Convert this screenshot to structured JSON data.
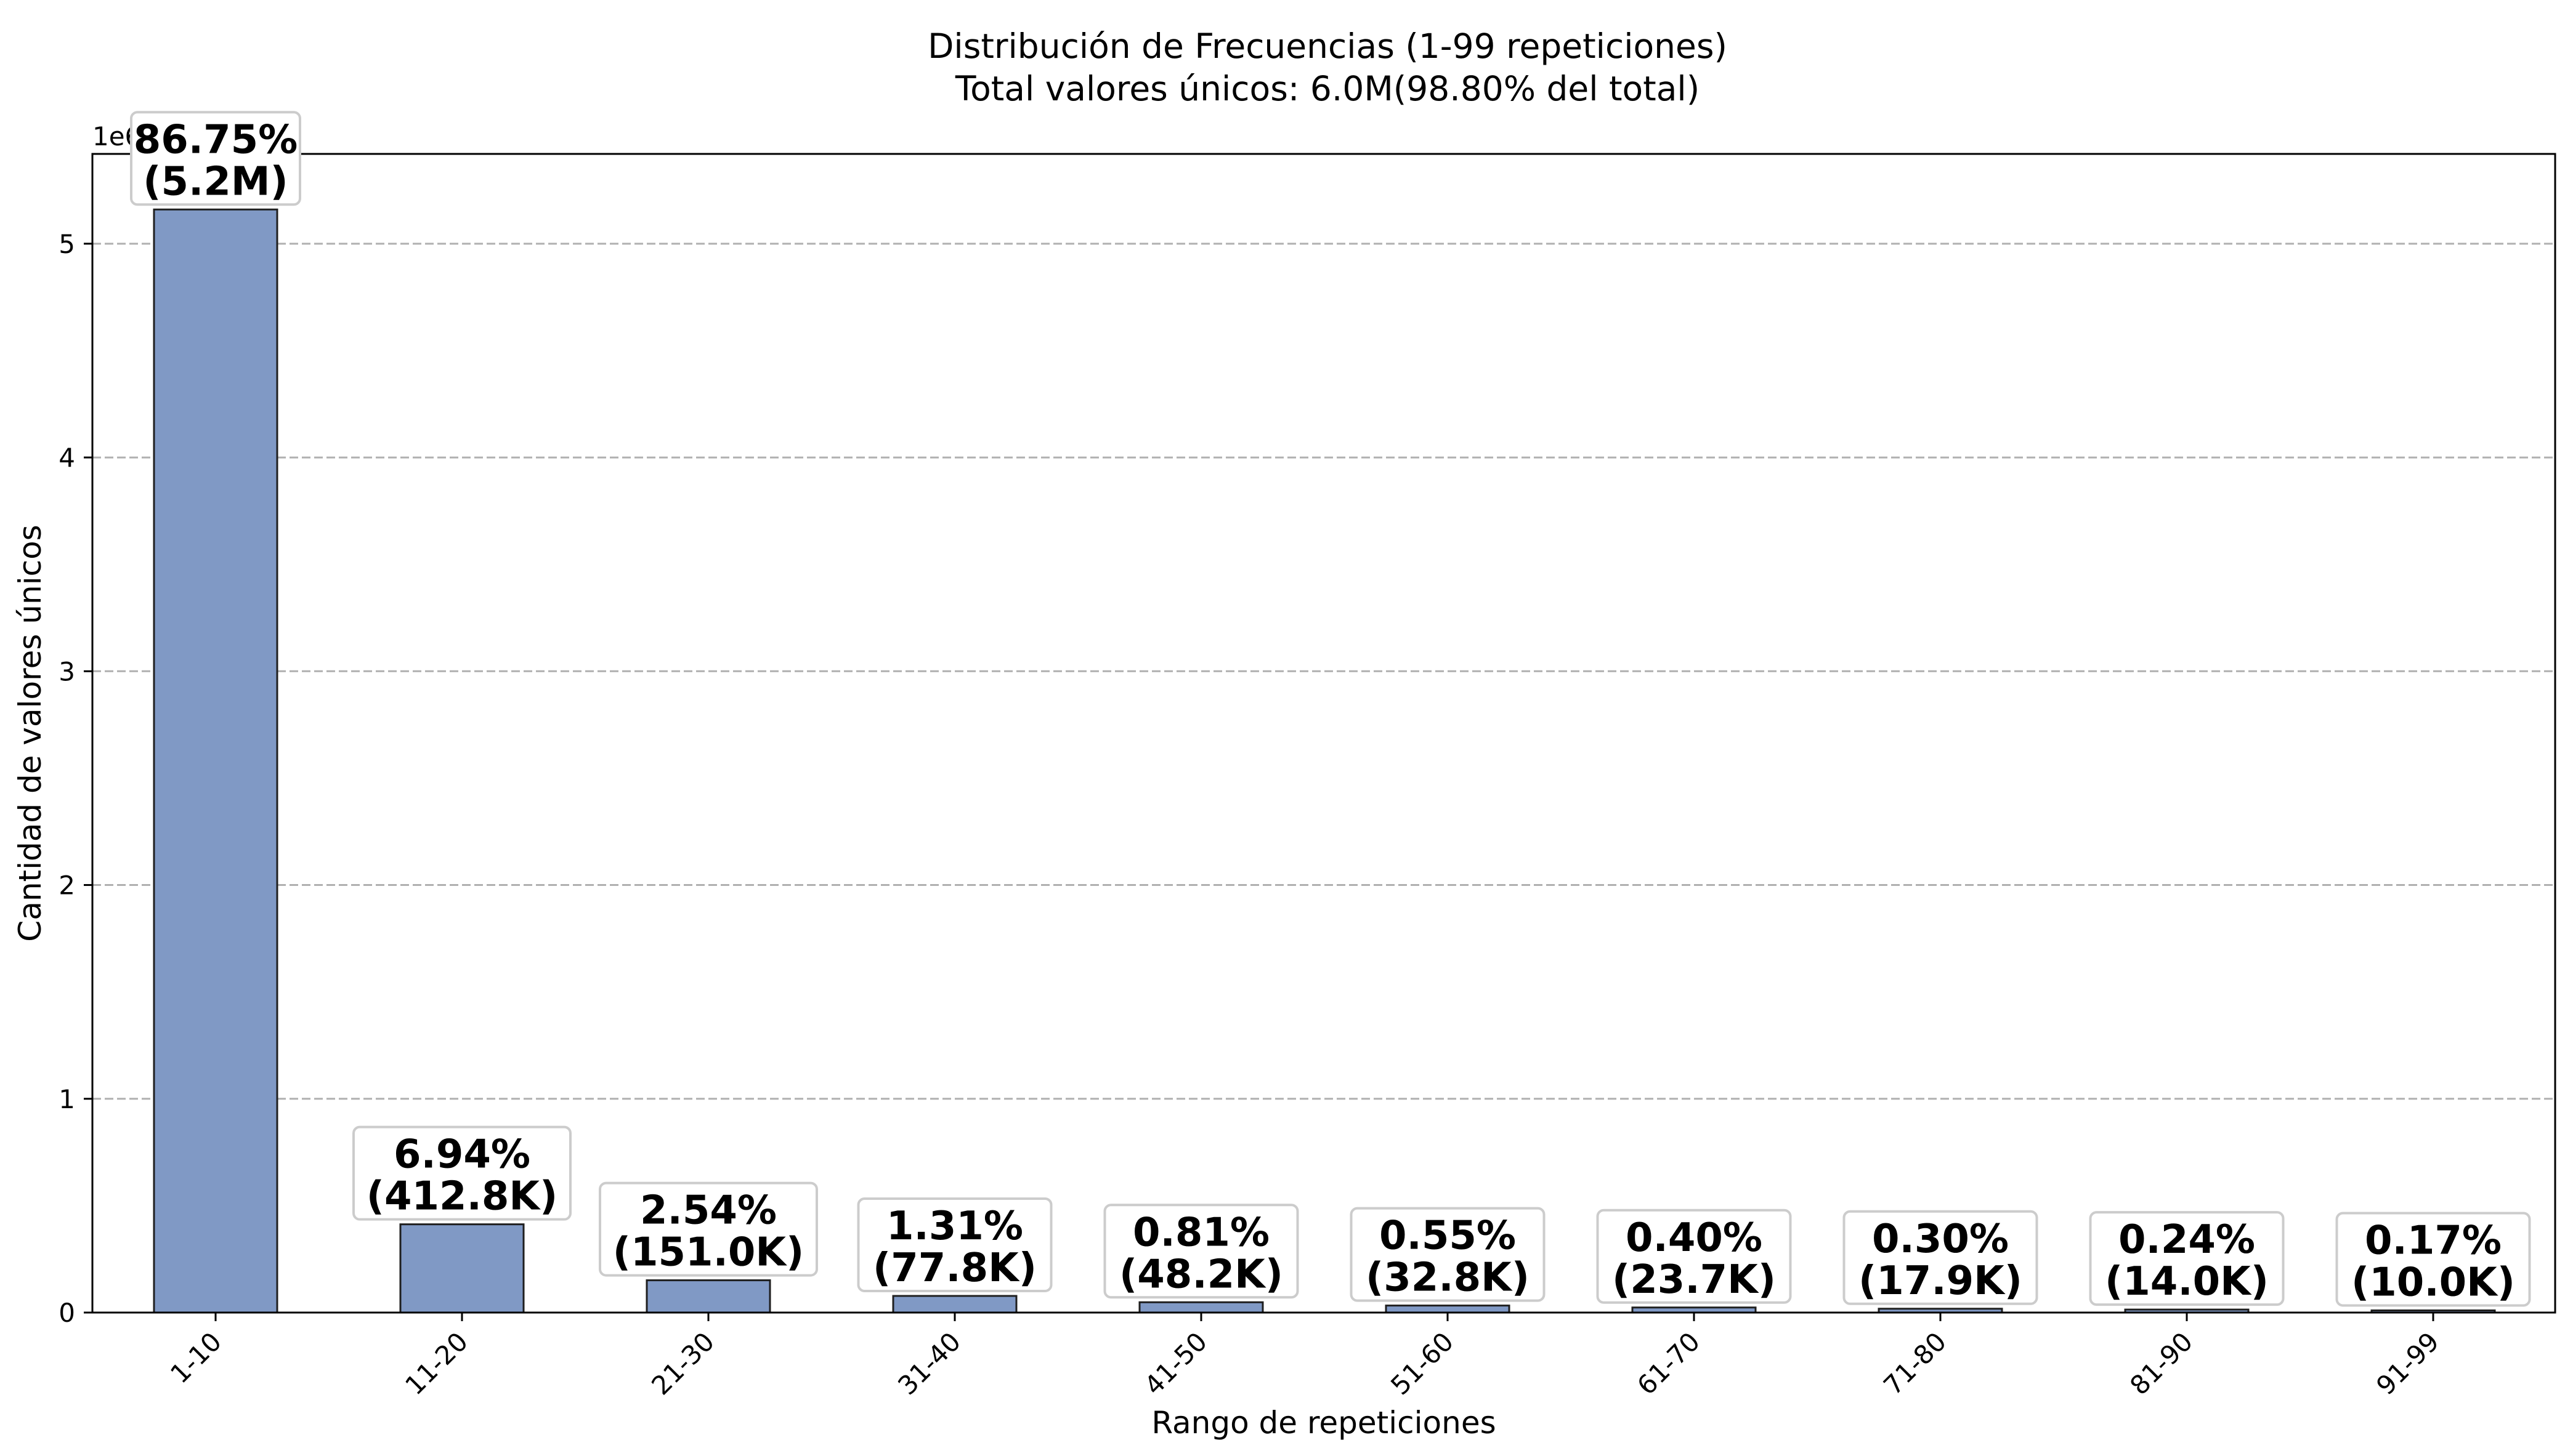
{
  "chart_data": {
    "type": "bar",
    "title": "Distribución de Frecuencias (1-99 repeticiones)",
    "subtitle": "Total valores únicos: 6.0M(98.80% del total)",
    "xlabel": "Rango de repeticiones",
    "ylabel": "Cantidad de valores únicos",
    "y_offset_label": "1e6",
    "categories": [
      "1-10",
      "11-20",
      "21-30",
      "31-40",
      "41-50",
      "51-60",
      "61-70",
      "71-80",
      "81-90",
      "91-99"
    ],
    "values": [
      5160000,
      412800,
      151000,
      77800,
      48200,
      32800,
      23700,
      17900,
      14000,
      10000
    ],
    "data_labels": [
      [
        "86.75%",
        "(5.2M)"
      ],
      [
        "6.94%",
        "(412.8K)"
      ],
      [
        "2.54%",
        "(151.0K)"
      ],
      [
        "1.31%",
        "(77.8K)"
      ],
      [
        "0.81%",
        "(48.2K)"
      ],
      [
        "0.55%",
        "(32.8K)"
      ],
      [
        "0.40%",
        "(23.7K)"
      ],
      [
        "0.30%",
        "(17.9K)"
      ],
      [
        "0.24%",
        "(14.0K)"
      ],
      [
        "0.17%",
        "(10.0K)"
      ]
    ],
    "y_ticks": [
      0,
      1000000,
      2000000,
      3000000,
      4000000,
      5000000
    ],
    "y_tick_labels": [
      "0",
      "1",
      "2",
      "3",
      "4",
      "5"
    ],
    "ylim": [
      0,
      5420000
    ],
    "grid": "horizontal dashed",
    "colors": {
      "bar": "#8099c5",
      "bar_edge": "#1f1f1f",
      "grid": "#b0b0b0"
    }
  }
}
